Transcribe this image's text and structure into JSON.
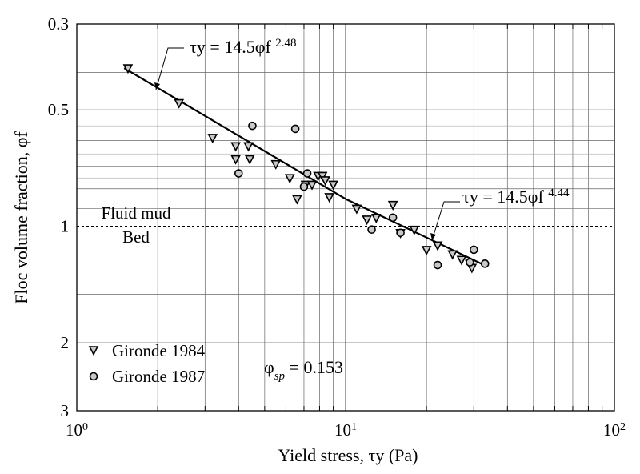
{
  "chart_data": {
    "type": "scatter",
    "xlabel": "Yield stress, τy (Pa)",
    "ylabel": "Floc volume fraction, φf",
    "x_scale": "log",
    "y_scale": "log",
    "y_inverted": true,
    "xlim": [
      1,
      100
    ],
    "ylim": [
      0.3,
      3
    ],
    "x_ticks": [
      {
        "value": 1,
        "base": "10",
        "exp": "0"
      },
      {
        "value": 10,
        "base": "10",
        "exp": "1"
      },
      {
        "value": 100,
        "base": "10",
        "exp": "2"
      }
    ],
    "y_ticks": [
      {
        "value": 0.3,
        "label": "0.3"
      },
      {
        "value": 0.5,
        "label": "0.5"
      },
      {
        "value": 1,
        "label": "1"
      },
      {
        "value": 2,
        "label": "2"
      },
      {
        "value": 3,
        "label": "3"
      }
    ],
    "grid": true,
    "legend_position": "bottom-left",
    "series": [
      {
        "name": "Gironde 1984",
        "marker": "triangle-down",
        "points": [
          [
            1.55,
            0.39
          ],
          [
            2.4,
            0.48
          ],
          [
            3.2,
            0.59
          ],
          [
            3.9,
            0.62
          ],
          [
            3.9,
            0.67
          ],
          [
            4.35,
            0.62
          ],
          [
            4.4,
            0.67
          ],
          [
            5.5,
            0.69
          ],
          [
            6.2,
            0.75
          ],
          [
            6.6,
            0.85
          ],
          [
            7.1,
            0.78
          ],
          [
            7.5,
            0.78
          ],
          [
            7.9,
            0.74
          ],
          [
            8.2,
            0.74
          ],
          [
            8.4,
            0.76
          ],
          [
            8.7,
            0.84
          ],
          [
            9.0,
            0.78
          ],
          [
            11.0,
            0.9
          ],
          [
            12.0,
            0.96
          ],
          [
            13.0,
            0.95
          ],
          [
            15.0,
            0.88
          ],
          [
            16.0,
            1.04
          ],
          [
            18.0,
            1.02
          ],
          [
            20.0,
            1.15
          ],
          [
            22.0,
            1.12
          ],
          [
            25.0,
            1.18
          ],
          [
            27.0,
            1.22
          ],
          [
            29.0,
            1.25
          ],
          [
            29.5,
            1.28
          ]
        ]
      },
      {
        "name": "Gironde 1987",
        "marker": "circle",
        "points": [
          [
            4.0,
            0.73
          ],
          [
            4.5,
            0.55
          ],
          [
            6.5,
            0.56
          ],
          [
            7.0,
            0.79
          ],
          [
            7.2,
            0.73
          ],
          [
            12.5,
            1.02
          ],
          [
            15.0,
            0.95
          ],
          [
            16.0,
            1.04
          ],
          [
            22.0,
            1.26
          ],
          [
            29.0,
            1.24
          ],
          [
            30.0,
            1.15
          ],
          [
            33.0,
            1.25
          ]
        ]
      }
    ],
    "fit_lines": [
      {
        "label_prefix": "τy = 14.5φf",
        "exponent": "2.48",
        "points": [
          [
            1.5,
            0.39
          ],
          [
            10.0,
            0.85
          ]
        ]
      },
      {
        "label_prefix": "τy = 14.5φf",
        "exponent": "4.44",
        "points": [
          [
            10.0,
            0.85
          ],
          [
            32.0,
            1.25
          ]
        ]
      }
    ],
    "reference_line": {
      "y": 1,
      "label_above": "Fluid mud",
      "label_below": "Bed"
    },
    "annotation": "φsp = 0.153"
  }
}
